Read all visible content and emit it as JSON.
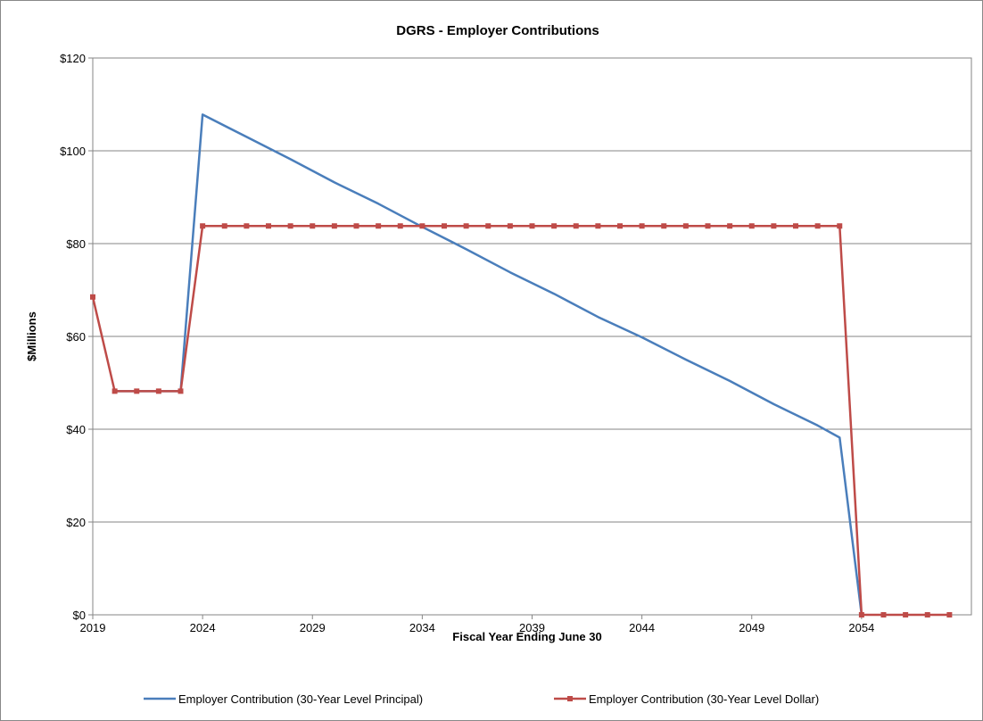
{
  "chart_data": {
    "type": "line",
    "title": "DGRS - Employer Contributions",
    "xlabel": "Fiscal Year Ending June 30",
    "ylabel": "$Millions",
    "xlim": [
      2019,
      2059
    ],
    "ylim": [
      0,
      120
    ],
    "x_ticks": [
      2019,
      2024,
      2029,
      2034,
      2039,
      2044,
      2049,
      2054
    ],
    "y_ticks": [
      0,
      20,
      40,
      60,
      80,
      100,
      120
    ],
    "y_tick_labels": [
      "$0",
      "$20",
      "$40",
      "$60",
      "$80",
      "$100",
      "$120"
    ],
    "grid": "horizontal",
    "legend_position": "bottom",
    "series": [
      {
        "name": "Employer Contribution (30-Year Level Principal)",
        "color": "#4a7ebb",
        "marker": "none",
        "x": [
          2020,
          2021,
          2022,
          2023,
          2024,
          2026,
          2028,
          2030,
          2032,
          2034,
          2036,
          2038,
          2040,
          2042,
          2044,
          2046,
          2048,
          2050,
          2052,
          2053,
          2054
        ],
        "values": [
          48.2,
          48.2,
          48.2,
          48.2,
          107.8,
          103.0,
          98.2,
          93.2,
          88.6,
          83.6,
          78.8,
          73.8,
          69.2,
          64.2,
          59.8,
          55.0,
          50.4,
          45.4,
          40.8,
          38.2,
          0
        ]
      },
      {
        "name": "Employer Contribution (30-Year Level Dollar)",
        "color": "#be4b48",
        "marker": "square",
        "x": [
          2019,
          2020,
          2021,
          2022,
          2023,
          2024,
          2025,
          2026,
          2027,
          2028,
          2029,
          2030,
          2031,
          2032,
          2033,
          2034,
          2035,
          2036,
          2037,
          2038,
          2039,
          2040,
          2041,
          2042,
          2043,
          2044,
          2045,
          2046,
          2047,
          2048,
          2049,
          2050,
          2051,
          2052,
          2053,
          2054,
          2055,
          2056,
          2057,
          2058
        ],
        "values": [
          68.5,
          48.2,
          48.2,
          48.2,
          48.2,
          83.8,
          83.8,
          83.8,
          83.8,
          83.8,
          83.8,
          83.8,
          83.8,
          83.8,
          83.8,
          83.8,
          83.8,
          83.8,
          83.8,
          83.8,
          83.8,
          83.8,
          83.8,
          83.8,
          83.8,
          83.8,
          83.8,
          83.8,
          83.8,
          83.8,
          83.8,
          83.8,
          83.8,
          83.8,
          83.8,
          0,
          0,
          0,
          0,
          0
        ]
      }
    ]
  }
}
